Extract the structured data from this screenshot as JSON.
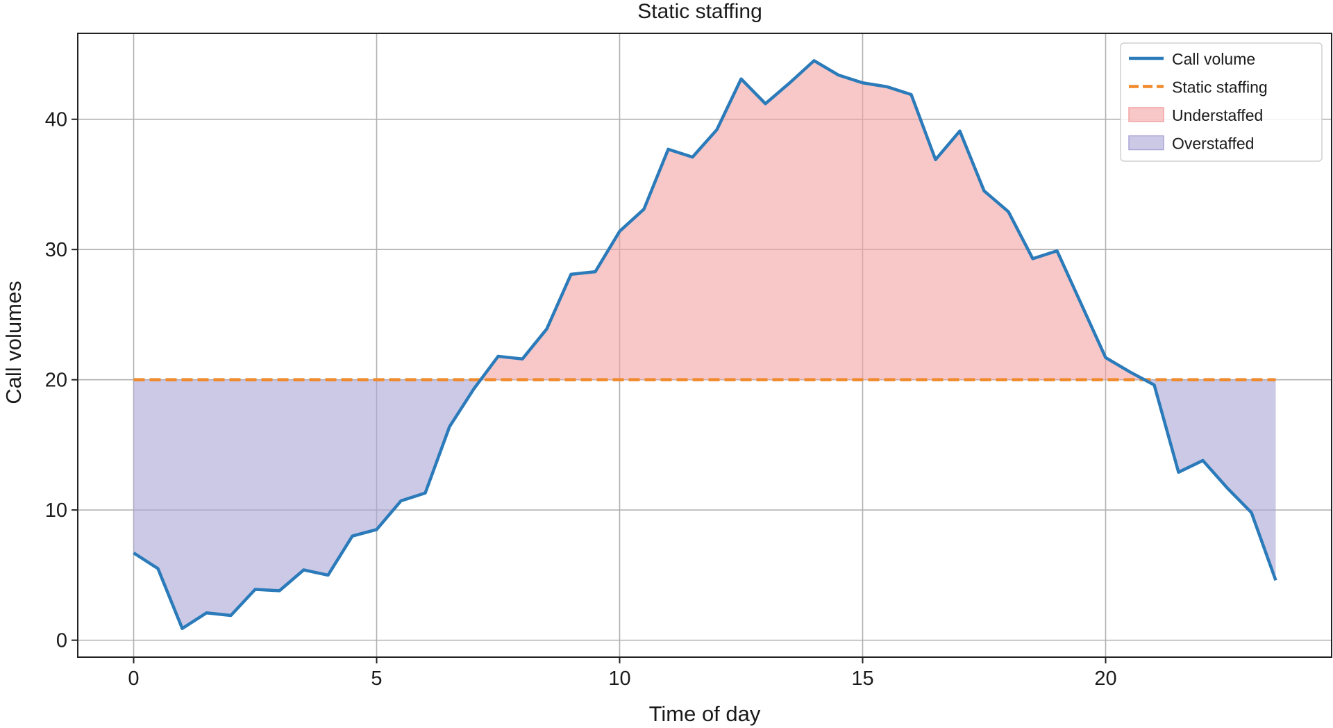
{
  "chart_data": {
    "type": "area",
    "title": "Static staffing",
    "xlabel": "Time of day",
    "ylabel": "Call volumes",
    "xlim": [
      -1.15,
      24.65
    ],
    "ylim": [
      -1.3,
      46.6
    ],
    "xticks": [
      0,
      5,
      10,
      15,
      20
    ],
    "yticks": [
      0,
      10,
      20,
      30,
      40
    ],
    "grid": true,
    "legend_position": "top-right",
    "series": [
      {
        "name": "Call volume",
        "kind": "line",
        "color": "#2b7bba",
        "x": [
          0,
          0.5,
          1,
          1.5,
          2,
          2.5,
          3,
          3.5,
          4,
          4.5,
          5,
          5.5,
          6,
          6.5,
          7,
          7.5,
          8,
          8.5,
          9,
          9.5,
          10,
          10.5,
          11,
          11.5,
          12,
          12.5,
          13,
          13.5,
          14,
          14.5,
          15,
          15.5,
          16,
          16.5,
          17,
          17.5,
          18,
          18.5,
          19,
          19.5,
          20,
          20.5,
          21,
          21.5,
          22,
          22.5,
          23,
          23.5
        ],
        "values": [
          6.7,
          5.5,
          0.9,
          2.1,
          1.9,
          3.9,
          3.8,
          5.4,
          5.0,
          8.0,
          8.5,
          10.7,
          11.3,
          16.4,
          19.3,
          21.8,
          21.6,
          23.9,
          28.1,
          28.3,
          31.4,
          33.1,
          37.7,
          37.1,
          39.2,
          43.1,
          41.2,
          42.8,
          44.5,
          43.4,
          42.8,
          42.5,
          41.9,
          36.9,
          39.1,
          34.5,
          32.9,
          29.3,
          29.9,
          25.8,
          21.7,
          20.6,
          19.6,
          12.9,
          13.8,
          11.7,
          9.8,
          4.6
        ]
      },
      {
        "name": "Static staffing",
        "kind": "dashed-line",
        "color": "#f08a2c",
        "x": [
          0,
          23.5
        ],
        "values": [
          20,
          20
        ]
      }
    ],
    "fills": [
      {
        "name": "Understaffed",
        "color": "#f4a3a3",
        "condition": "call volume above static staffing"
      },
      {
        "name": "Overstaffed",
        "color": "#a9a5d6",
        "condition": "call volume below static staffing"
      }
    ]
  }
}
